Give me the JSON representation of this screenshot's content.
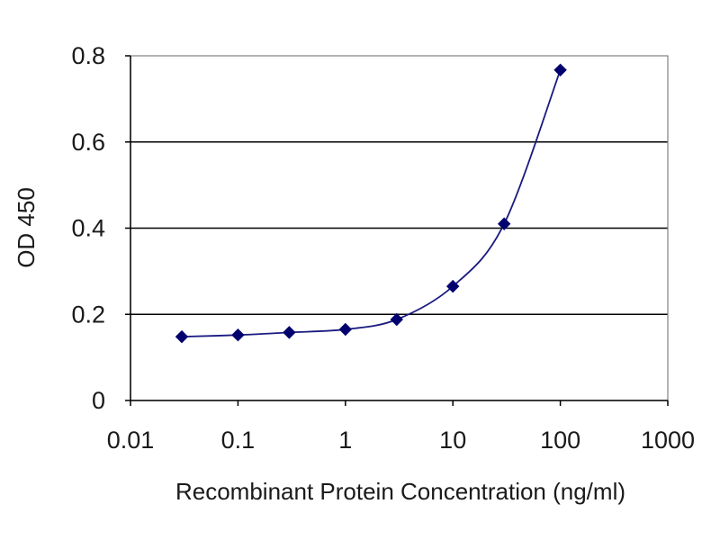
{
  "chart_data": {
    "type": "line",
    "title": "",
    "xlabel": "Recombinant Protein Concentration (ng/ml)",
    "ylabel": "OD 450",
    "x_scale": "log",
    "xlim": [
      0.01,
      1000
    ],
    "ylim": [
      0,
      0.8
    ],
    "x_ticks": [
      "0.01",
      "0.1",
      "1",
      "10",
      "100",
      "1000"
    ],
    "y_ticks": [
      "0",
      "0.2",
      "0.4",
      "0.6",
      "0.8"
    ],
    "grid": "horizontal",
    "legend": "none",
    "colors": {
      "series": "#1a1a80",
      "marker": "#00006e",
      "gridline": "#000000",
      "axis": "#000000"
    },
    "series": [
      {
        "x": [
          0.03,
          0.1,
          0.3,
          1,
          3,
          10,
          30,
          100
        ],
        "y": [
          0.148,
          0.152,
          0.158,
          0.165,
          0.188,
          0.265,
          0.41,
          0.767
        ]
      }
    ]
  }
}
